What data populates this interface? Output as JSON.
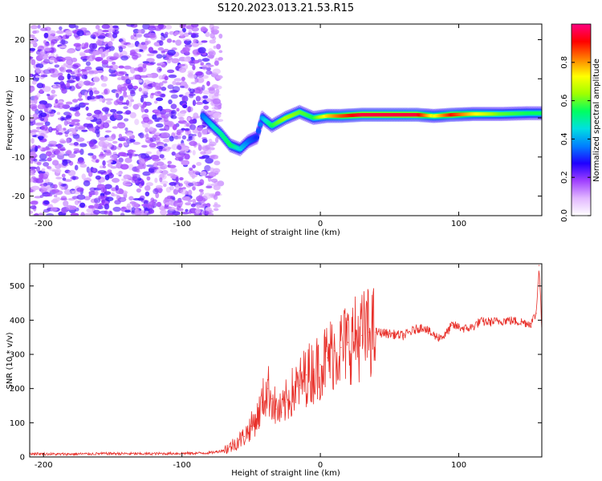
{
  "title": "S120.2023.013.21.53.R15",
  "colors": {
    "snr_line": "#e8302a",
    "spectrum_low": "#8a2be2",
    "axis": "#000000"
  },
  "chart_data": [
    {
      "type": "heatmap",
      "xlabel": "Height of straight line (km)",
      "ylabel": "Frequency (Hz)",
      "xlim": [
        -210,
        160
      ],
      "ylim": [
        -25,
        24
      ],
      "xticks": [
        -200,
        -100,
        0,
        100
      ],
      "yticks": [
        -20,
        -10,
        0,
        10,
        20
      ],
      "colorbar": {
        "label": "Normalized spectral amplitude",
        "range": [
          0,
          1
        ],
        "ticks": [
          0.0,
          0.2,
          0.4,
          0.6,
          0.8
        ],
        "colormap": [
          "#ffffff",
          "#e2b8ff",
          "#a040ff",
          "#2000ff",
          "#0080ff",
          "#00e0e0",
          "#00ff60",
          "#a0ff00",
          "#ffff00",
          "#ff8000",
          "#ff0000",
          "#ff0080"
        ]
      },
      "noise_region": {
        "x_range": [
          -210,
          -80
        ],
        "freq_range": [
          -25,
          24
        ],
        "amplitude": 0.15
      },
      "signal_ridge": [
        {
          "x": -85,
          "freq": 0.5,
          "amp": 0.35
        },
        {
          "x": -78,
          "freq": -2,
          "amp": 0.45
        },
        {
          "x": -72,
          "freq": -4,
          "amp": 0.5
        },
        {
          "x": -65,
          "freq": -7,
          "amp": 0.55
        },
        {
          "x": -58,
          "freq": -8,
          "amp": 0.45
        },
        {
          "x": -52,
          "freq": -6,
          "amp": 0.35
        },
        {
          "x": -46,
          "freq": -5,
          "amp": 0.3
        },
        {
          "x": -42,
          "freq": 0,
          "amp": 0.4
        },
        {
          "x": -35,
          "freq": -2,
          "amp": 0.55
        },
        {
          "x": -25,
          "freq": 0,
          "amp": 0.65
        },
        {
          "x": -15,
          "freq": 1.5,
          "amp": 0.6
        },
        {
          "x": -5,
          "freq": 0,
          "amp": 0.55
        },
        {
          "x": 5,
          "freq": 0.5,
          "amp": 0.75
        },
        {
          "x": 15,
          "freq": 0.5,
          "amp": 0.85
        },
        {
          "x": 30,
          "freq": 0.8,
          "amp": 0.95
        },
        {
          "x": 50,
          "freq": 0.8,
          "amp": 0.95
        },
        {
          "x": 70,
          "freq": 0.8,
          "amp": 0.95
        },
        {
          "x": 82,
          "freq": 0.5,
          "amp": 0.7
        },
        {
          "x": 95,
          "freq": 0.8,
          "amp": 0.9
        },
        {
          "x": 110,
          "freq": 1.0,
          "amp": 0.75
        },
        {
          "x": 130,
          "freq": 1.0,
          "amp": 0.6
        },
        {
          "x": 150,
          "freq": 1.2,
          "amp": 0.55
        },
        {
          "x": 160,
          "freq": 1.2,
          "amp": 0.55
        }
      ]
    },
    {
      "type": "line",
      "xlabel": "Height of straight line (km)",
      "ylabel": "SNR (10 * v/v)",
      "xlim": [
        -210,
        160
      ],
      "ylim": [
        0,
        565
      ],
      "xticks": [
        -200,
        -100,
        0,
        100
      ],
      "yticks": [
        0,
        100,
        200,
        300,
        400,
        500
      ],
      "series": [
        {
          "points": [
            [
              -210,
              10
            ],
            [
              -190,
              8
            ],
            [
              -170,
              9
            ],
            [
              -150,
              10
            ],
            [
              -130,
              9
            ],
            [
              -110,
              10
            ],
            [
              -90,
              11
            ],
            [
              -80,
              12
            ],
            [
              -75,
              15
            ],
            [
              -70,
              20
            ],
            [
              -65,
              30
            ],
            [
              -60,
              45
            ],
            [
              -55,
              60
            ],
            [
              -50,
              90
            ],
            [
              -45,
              120
            ],
            [
              -42,
              160
            ],
            [
              -38,
              200
            ],
            [
              -35,
              170
            ],
            [
              -32,
              140
            ],
            [
              -28,
              130
            ],
            [
              -25,
              160
            ],
            [
              -20,
              190
            ],
            [
              -15,
              210
            ],
            [
              -10,
              240
            ],
            [
              -5,
              250
            ],
            [
              0,
              270
            ],
            [
              5,
              290
            ],
            [
              10,
              310
            ],
            [
              15,
              320
            ],
            [
              20,
              335
            ],
            [
              25,
              345
            ],
            [
              30,
              355
            ],
            [
              35,
              365
            ],
            [
              40,
              365
            ],
            [
              50,
              360
            ],
            [
              60,
              355
            ],
            [
              70,
              375
            ],
            [
              75,
              380
            ],
            [
              80,
              360
            ],
            [
              85,
              350
            ],
            [
              90,
              355
            ],
            [
              95,
              385
            ],
            [
              100,
              380
            ],
            [
              105,
              375
            ],
            [
              110,
              380
            ],
            [
              115,
              395
            ],
            [
              125,
              395
            ],
            [
              135,
              400
            ],
            [
              145,
              395
            ],
            [
              152,
              390
            ],
            [
              156,
              420
            ],
            [
              158,
              560
            ],
            [
              160,
              380
            ]
          ]
        }
      ]
    }
  ]
}
